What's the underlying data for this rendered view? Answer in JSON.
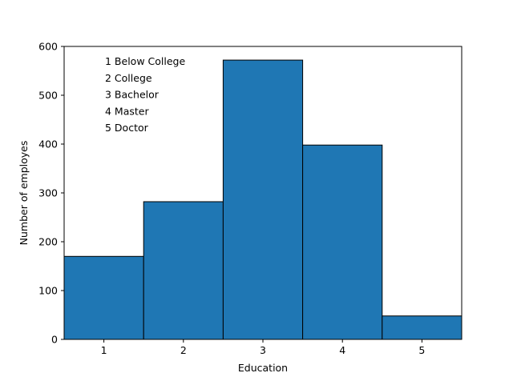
{
  "chart_data": {
    "type": "bar",
    "categories": [
      "1",
      "2",
      "3",
      "4",
      "5"
    ],
    "values": [
      170,
      282,
      572,
      398,
      48
    ],
    "xlabel": "Education",
    "ylabel": "Number of employes",
    "ylim": [
      0,
      600
    ],
    "xlim": [
      0.5,
      5.5
    ],
    "yticks": [
      0,
      100,
      200,
      300,
      400,
      500,
      600
    ],
    "grid": false,
    "legend": "none",
    "bar_color": "#1f77b4",
    "edge_color": "#000000",
    "annotations": [
      "1 Below College",
      "2 College",
      "3 Bachelor",
      "4 Master",
      "5 Doctor"
    ]
  }
}
